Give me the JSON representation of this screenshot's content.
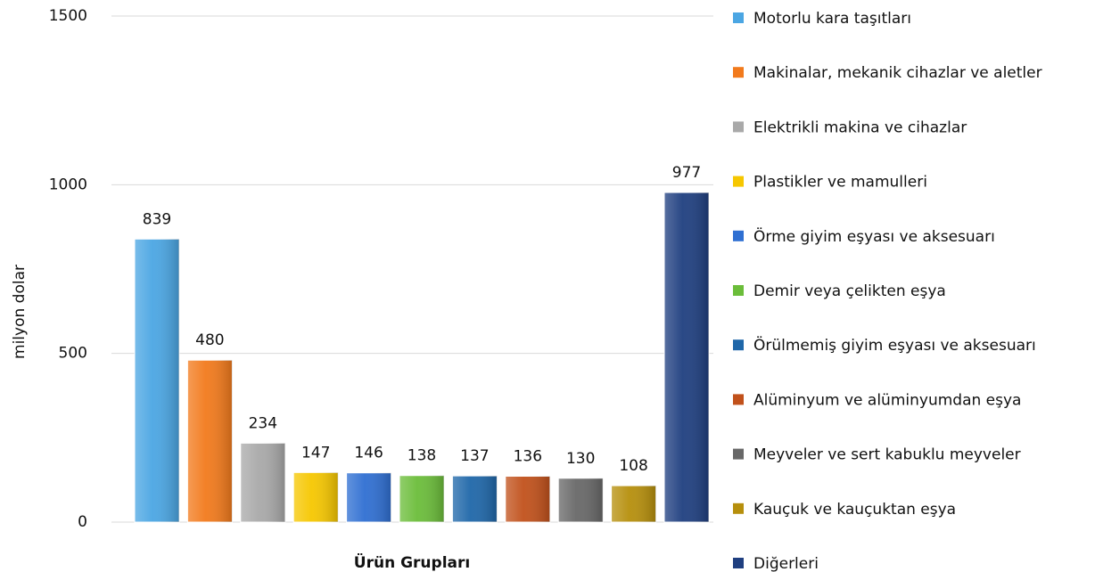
{
  "chart_data": {
    "type": "bar",
    "x_label": "Ürün Grupları",
    "y_label": "milyon dolar",
    "categories": [
      "Motorlu kara taşıtları",
      "Makinalar, mekanik cihazlar ve aletler",
      "Elektrikli makina ve cihazlar",
      "Plastikler ve mamulleri",
      "Örme giyim eşyası ve aksesuarı",
      "Demir veya çelikten eşya",
      "Örülmemiş giyim eşyası ve aksesuarı",
      "Alüminyum ve alüminyumdan eşya",
      "Meyveler ve sert kabuklu meyveler",
      "Kauçuk ve kauçuktan eşya",
      "Diğerleri"
    ],
    "values": [
      839,
      480,
      234,
      147,
      146,
      138,
      137,
      136,
      130,
      108,
      977
    ],
    "colors": [
      "#4ba6e3",
      "#f27a1c",
      "#a9a9a9",
      "#f6c700",
      "#2f6fd2",
      "#6bbd3a",
      "#1f67a9",
      "#c1511b",
      "#686868",
      "#b68f0c",
      "#1f3f80"
    ],
    "ylim": [
      0,
      1500
    ],
    "yticks": [
      0,
      500,
      1000,
      1500
    ],
    "grid": true,
    "legend": "right"
  }
}
